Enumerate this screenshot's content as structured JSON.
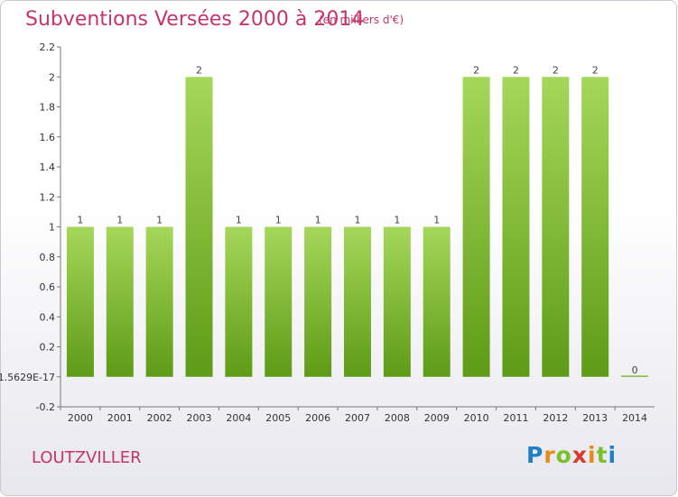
{
  "header": {
    "title": "Subventions Versées 2000 à 2014",
    "subtitle": "(en milliers d'€)"
  },
  "footer": {
    "commune": "LOUTZVILLER",
    "logo_icon": "proxiti-logo"
  },
  "colors": {
    "title": "#c4356a",
    "bar_light": "#a5d75a",
    "bar_dark": "#5e9b16",
    "axis": "#666666"
  },
  "chart_data": {
    "type": "bar",
    "categories": [
      "2000",
      "2001",
      "2002",
      "2003",
      "2004",
      "2005",
      "2006",
      "2007",
      "2008",
      "2009",
      "2010",
      "2011",
      "2012",
      "2013",
      "2014"
    ],
    "values": [
      1,
      1,
      1,
      2,
      1,
      1,
      1,
      1,
      1,
      1,
      2,
      2,
      2,
      2,
      0
    ],
    "data_labels": [
      "1",
      "1",
      "1",
      "2",
      "1",
      "1",
      "1",
      "1",
      "1",
      "1",
      "2",
      "2",
      "2",
      "2",
      "0"
    ],
    "ylim": [
      -0.2,
      2.2
    ],
    "yticks": [
      {
        "v": 2.2,
        "label": "2.2"
      },
      {
        "v": 2.0,
        "label": "2"
      },
      {
        "v": 1.8,
        "label": "1.8"
      },
      {
        "v": 1.6,
        "label": "1.6"
      },
      {
        "v": 1.4,
        "label": "1.4"
      },
      {
        "v": 1.2,
        "label": "1.2"
      },
      {
        "v": 1.0,
        "label": "1"
      },
      {
        "v": 0.8,
        "label": "0.8"
      },
      {
        "v": 0.6,
        "label": "0.6"
      },
      {
        "v": 0.4,
        "label": "0.4"
      },
      {
        "v": 0.2,
        "label": "0.2"
      },
      {
        "v": 0.0,
        "label": "-1.5629E-17"
      },
      {
        "v": -0.2,
        "label": "-0.2"
      }
    ],
    "grid": false,
    "legend": "none"
  }
}
